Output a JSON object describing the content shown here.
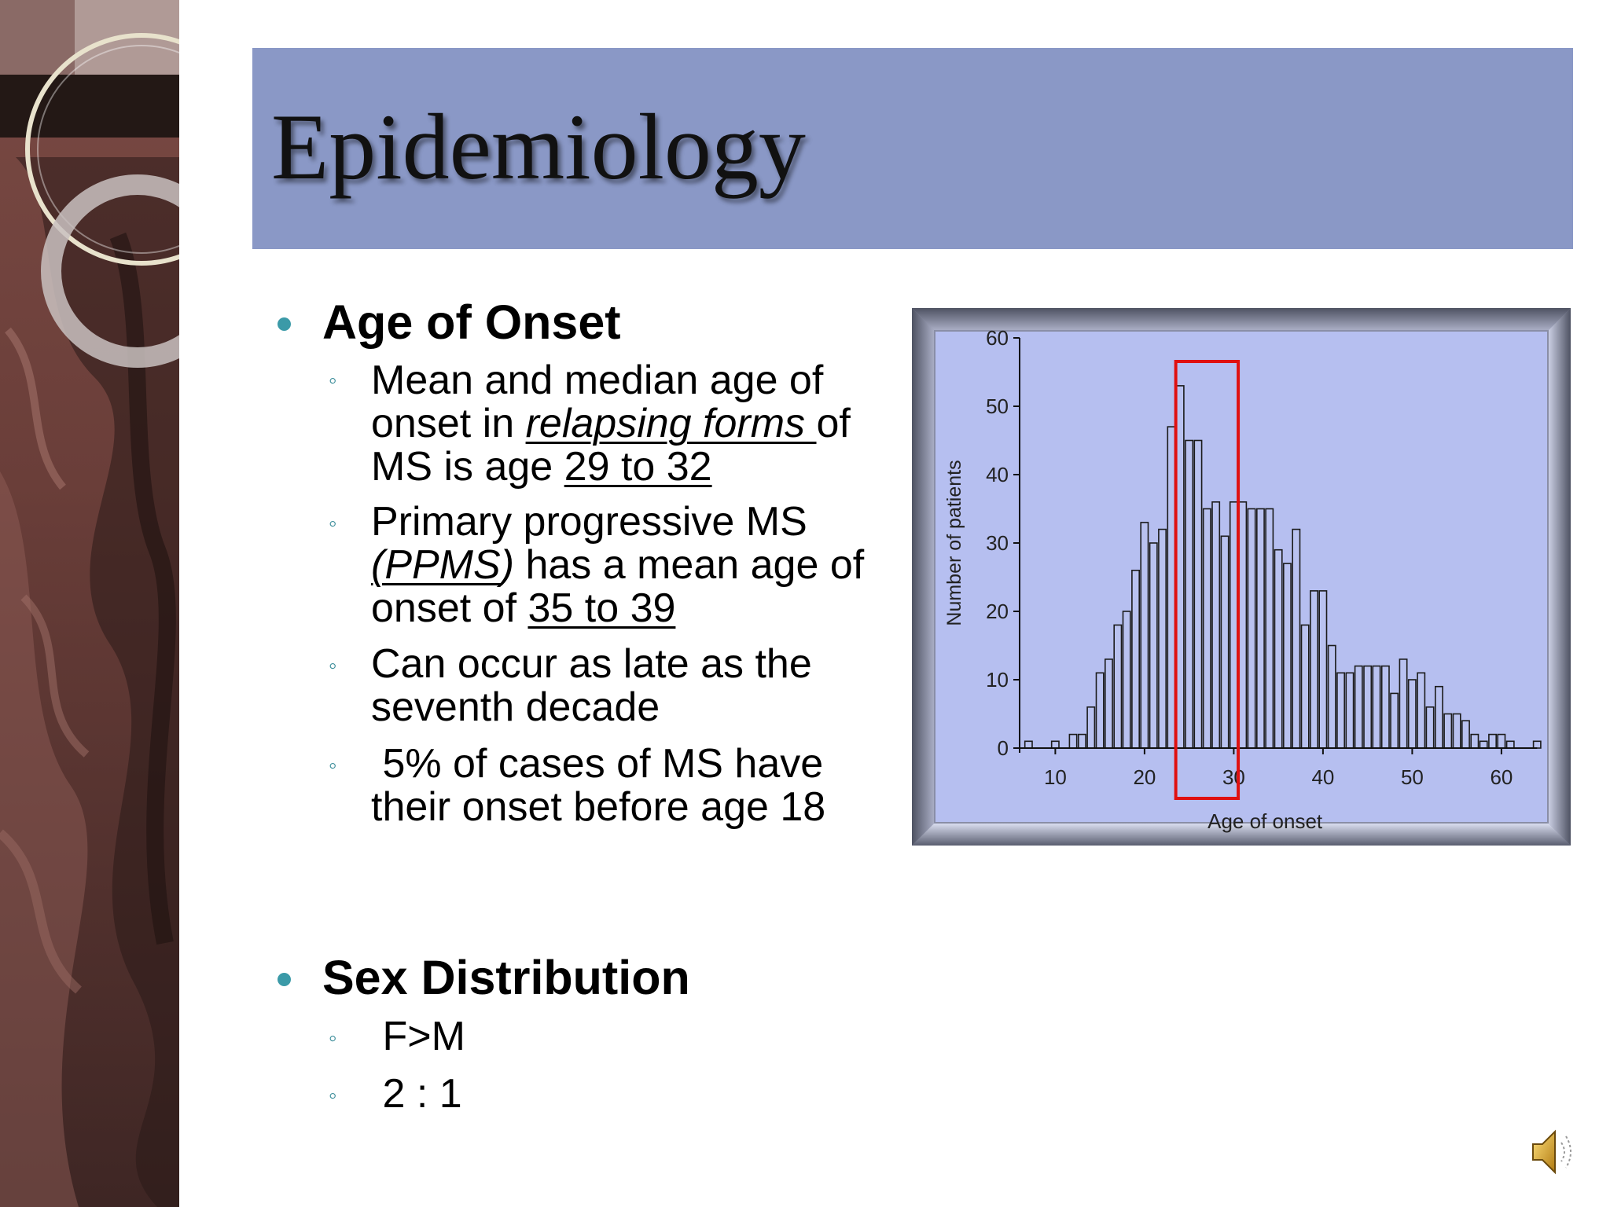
{
  "slide": {
    "title": "Epidemiology",
    "sections": [
      {
        "heading": "Age of Onset",
        "items": [
          {
            "parts": [
              "Mean and median age of onset in ",
              "relapsing forms ",
              "of MS is age ",
              "29 to 32"
            ]
          },
          {
            "parts": [
              "Primary progressive MS ",
              "(PPMS",
              ")",
              " has a mean age of onset of ",
              "35 to 39"
            ]
          },
          {
            "parts": [
              "Can occur as late as the seventh decade"
            ]
          },
          {
            "parts": [
              " 5% of cases of MS have their onset before age 18"
            ]
          }
        ]
      },
      {
        "heading": "Sex Distribution",
        "items": [
          {
            "parts": [
              " F>M"
            ]
          },
          {
            "parts": [
              " 2 : 1"
            ]
          }
        ]
      }
    ]
  },
  "chart_data": {
    "type": "bar",
    "xlabel": "Age of onset",
    "ylabel": "Number of patients",
    "xlim": [
      6,
      64
    ],
    "ylim": [
      0,
      60
    ],
    "x_ticks": [
      "10",
      "20",
      "30",
      "40",
      "50",
      "60"
    ],
    "y_ticks": [
      "0",
      "10",
      "20",
      "30",
      "40",
      "50",
      "60"
    ],
    "grid": false,
    "highlight": {
      "x_from": 23.5,
      "x_to": 30.5,
      "color": "#e01010"
    },
    "x": [
      6,
      7,
      8,
      9,
      10,
      11,
      12,
      13,
      14,
      15,
      16,
      17,
      18,
      19,
      20,
      21,
      22,
      23,
      24,
      25,
      26,
      27,
      28,
      29,
      30,
      31,
      32,
      33,
      34,
      35,
      36,
      37,
      38,
      39,
      40,
      41,
      42,
      43,
      44,
      45,
      46,
      47,
      48,
      49,
      50,
      51,
      52,
      53,
      54,
      55,
      56,
      57,
      58,
      59,
      60,
      61,
      62,
      63,
      64
    ],
    "values": [
      0,
      1,
      0,
      0,
      1,
      0,
      2,
      2,
      6,
      11,
      13,
      18,
      20,
      26,
      33,
      30,
      32,
      47,
      53,
      45,
      45,
      35,
      36,
      31,
      36,
      36,
      35,
      35,
      35,
      29,
      27,
      32,
      18,
      23,
      23,
      15,
      11,
      11,
      12,
      12,
      12,
      12,
      8,
      13,
      10,
      11,
      6,
      9,
      5,
      5,
      4,
      2,
      1,
      2,
      2,
      1,
      0,
      0,
      1
    ],
    "colors": {
      "background": "#b6bff0",
      "bar_fill": "#b9c2f0",
      "bar_stroke": "#1b1b1b"
    }
  },
  "colors": {
    "title_band": "#8a98c6",
    "bullet": "#3b9aa8",
    "chart_frame": "#8a8ea6"
  },
  "icons": {
    "speaker": "speaker-icon"
  }
}
